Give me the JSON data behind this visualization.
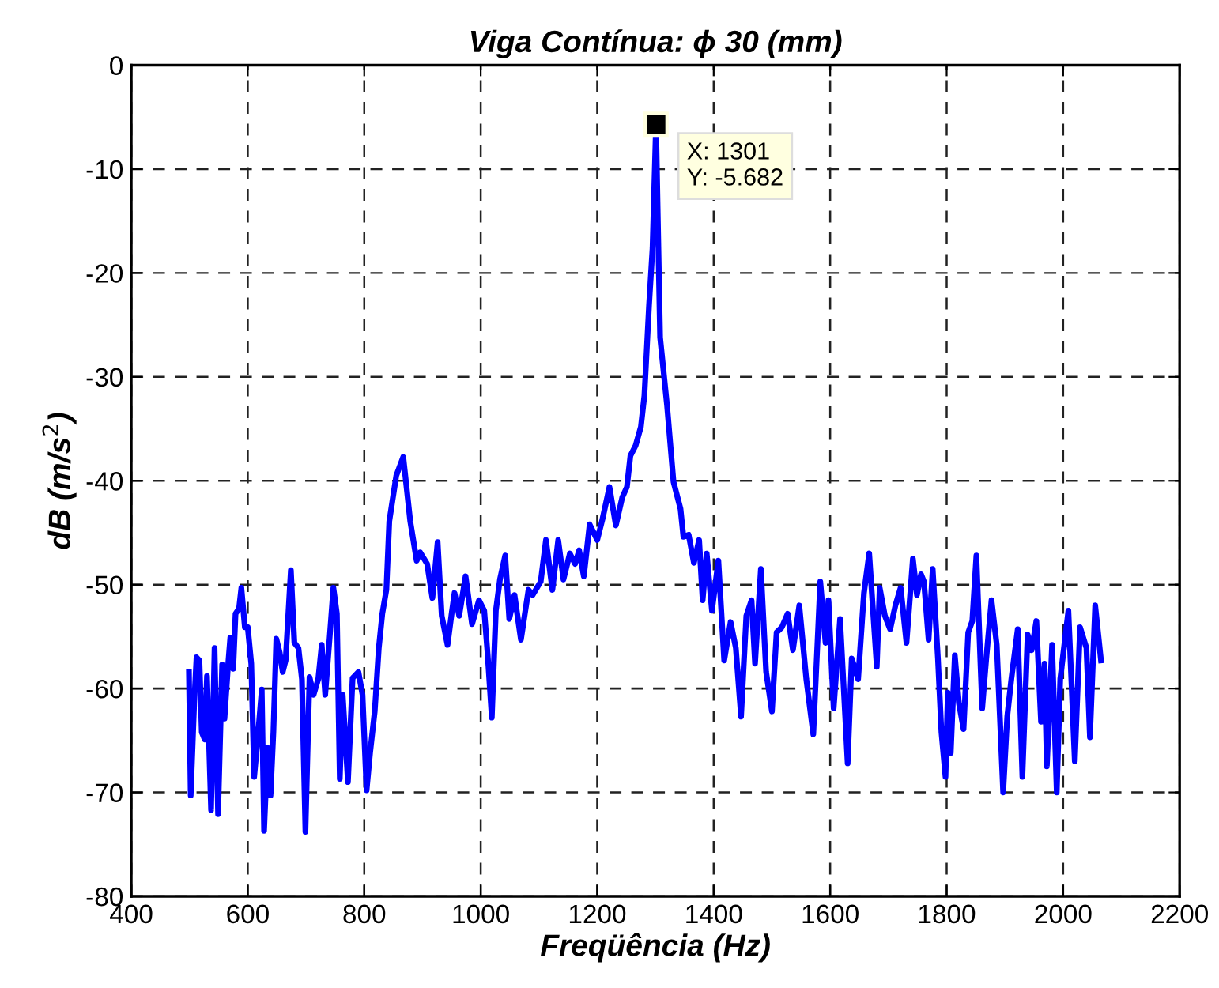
{
  "chart_data": {
    "type": "line",
    "title": "Viga Contínua: ϕ 30 (mm)",
    "xlabel": "Freqüência (Hz)",
    "ylabel": "dB (m/s$^{2}$)",
    "xlim": [
      400,
      2200
    ],
    "xticks": [
      400,
      600,
      800,
      1000,
      1200,
      1400,
      1600,
      1800,
      2000,
      2200
    ],
    "ylim": [
      -80,
      0
    ],
    "yticks": [
      -80,
      -70,
      -60,
      -50,
      -40,
      -30,
      -20,
      -10,
      0
    ],
    "grid": true,
    "marker": "none",
    "line_style": "solid",
    "legend": false,
    "annotations": [
      {
        "text": "X: 1301\nY: -5.682",
        "x": 1301,
        "y": -5.682
      }
    ],
    "series": [
      {
        "color": "#0000ff",
        "x": [
          499,
          502,
          508,
          512,
          517,
          521,
          526,
          530,
          537,
          543,
          549,
          556,
          560,
          566,
          570,
          575,
          579,
          585,
          589,
          595,
          600,
          606,
          611,
          618,
          624,
          628,
          634,
          639,
          644,
          649,
          655,
          660,
          665,
          674,
          680,
          687,
          693,
          699,
          706,
          713,
          721,
          727,
          733,
          741,
          747,
          753,
          758,
          763,
          772,
          780,
          790,
          797,
          804,
          810,
          818,
          825,
          831,
          838,
          843,
          855,
          867,
          879,
          890,
          896,
          908,
          917,
          926,
          933,
          943,
          950,
          955,
          963,
          974,
          985,
          997,
          1006,
          1012,
          1019,
          1026,
          1033,
          1042,
          1049,
          1058,
          1069,
          1082,
          1089,
          1103,
          1112,
          1123,
          1133,
          1142,
          1153,
          1162,
          1169,
          1177,
          1187,
          1200,
          1209,
          1221,
          1232,
          1243,
          1251,
          1257,
          1266,
          1275,
          1281,
          1289,
          1295,
          1301,
          1308,
          1320,
          1331,
          1343,
          1348,
          1357,
          1366,
          1375,
          1381,
          1388,
          1397,
          1408,
          1418,
          1429,
          1438,
          1447,
          1456,
          1465,
          1471,
          1481,
          1490,
          1500,
          1508,
          1517,
          1527,
          1536,
          1547,
          1559,
          1571,
          1583,
          1592,
          1597,
          1606,
          1617,
          1630,
          1637,
          1648,
          1658,
          1667,
          1680,
          1685,
          1694,
          1703,
          1712,
          1721,
          1731,
          1742,
          1749,
          1756,
          1761,
          1769,
          1776,
          1785,
          1791,
          1798,
          1802,
          1807,
          1814,
          1821,
          1829,
          1837,
          1844,
          1851,
          1861,
          1868,
          1877,
          1886,
          1897,
          1904,
          1911,
          1922,
          1930,
          1939,
          1946,
          1954,
          1962,
          1968,
          1972,
          1981,
          1989,
          1995,
          2009,
          2020,
          2029,
          2040,
          2046,
          2055,
          2065
        ],
        "values": [
          -58.4,
          -70.3,
          -61.4,
          -57,
          -57.3,
          -64.2,
          -64.9,
          -58.8,
          -71.7,
          -56.1,
          -72.1,
          -57.7,
          -62.9,
          -57.9,
          -55.1,
          -58.1,
          -52.8,
          -52.3,
          -50.3,
          -54.1,
          -54.1,
          -57.6,
          -68.5,
          -64.2,
          -60.1,
          -73.7,
          -65.7,
          -70.3,
          -64.2,
          -55.2,
          -56.6,
          -58.4,
          -57.3,
          -48.6,
          -55.6,
          -56.1,
          -59.1,
          -73.8,
          -58.9,
          -60.6,
          -59.1,
          -55.8,
          -60.6,
          -54.8,
          -50.3,
          -52.8,
          -68.7,
          -60.6,
          -69,
          -59,
          -58.4,
          -60.6,
          -69.8,
          -66.2,
          -62.2,
          -56.1,
          -52.8,
          -50.5,
          -43.9,
          -39.5,
          -37.7,
          -43.9,
          -47.7,
          -46.9,
          -48,
          -51.3,
          -45.9,
          -53,
          -55.8,
          -52.8,
          -50.8,
          -53,
          -49.2,
          -53.8,
          -51.5,
          -52.5,
          -56.8,
          -62.8,
          -52.5,
          -49.5,
          -47.2,
          -53.3,
          -51,
          -55.3,
          -50.5,
          -51,
          -49.7,
          -45.7,
          -50.5,
          -45.7,
          -49.5,
          -47,
          -48,
          -46.7,
          -49.2,
          -44.2,
          -45.7,
          -43.7,
          -40.6,
          -44.3,
          -41.6,
          -40.6,
          -37.6,
          -36.6,
          -34.8,
          -31.8,
          -23.1,
          -17.6,
          -5.682,
          -26.2,
          -32.8,
          -40.1,
          -42.7,
          -45.4,
          -45.2,
          -47.9,
          -45.7,
          -51.5,
          -47,
          -52.5,
          -47.7,
          -57.3,
          -53.6,
          -56.1,
          -62.7,
          -53,
          -51.5,
          -57.6,
          -48.5,
          -58.4,
          -62.2,
          -54.6,
          -54.1,
          -52.8,
          -56.3,
          -52,
          -59.1,
          -64.4,
          -49.7,
          -55.6,
          -51.5,
          -61.9,
          -53.3,
          -67.2,
          -57.1,
          -59.1,
          -50.8,
          -47,
          -57.9,
          -50.3,
          -53,
          -54.3,
          -52,
          -50.3,
          -55.6,
          -47.5,
          -51,
          -49,
          -49.7,
          -55.3,
          -48.5,
          -57.1,
          -64.2,
          -68.5,
          -60.4,
          -66.2,
          -56.8,
          -61.4,
          -63.9,
          -54.6,
          -53.5,
          -47.2,
          -61.9,
          -57.1,
          -51.5,
          -55.8,
          -70,
          -62.7,
          -59.1,
          -54.3,
          -68.5,
          -54.8,
          -56.3,
          -53.5,
          -63.2,
          -57.6,
          -67.5,
          -55.8,
          -70,
          -59.1,
          -52.5,
          -67,
          -54.1,
          -56.1,
          -64.7,
          -52,
          -57.3
        ]
      }
    ]
  }
}
